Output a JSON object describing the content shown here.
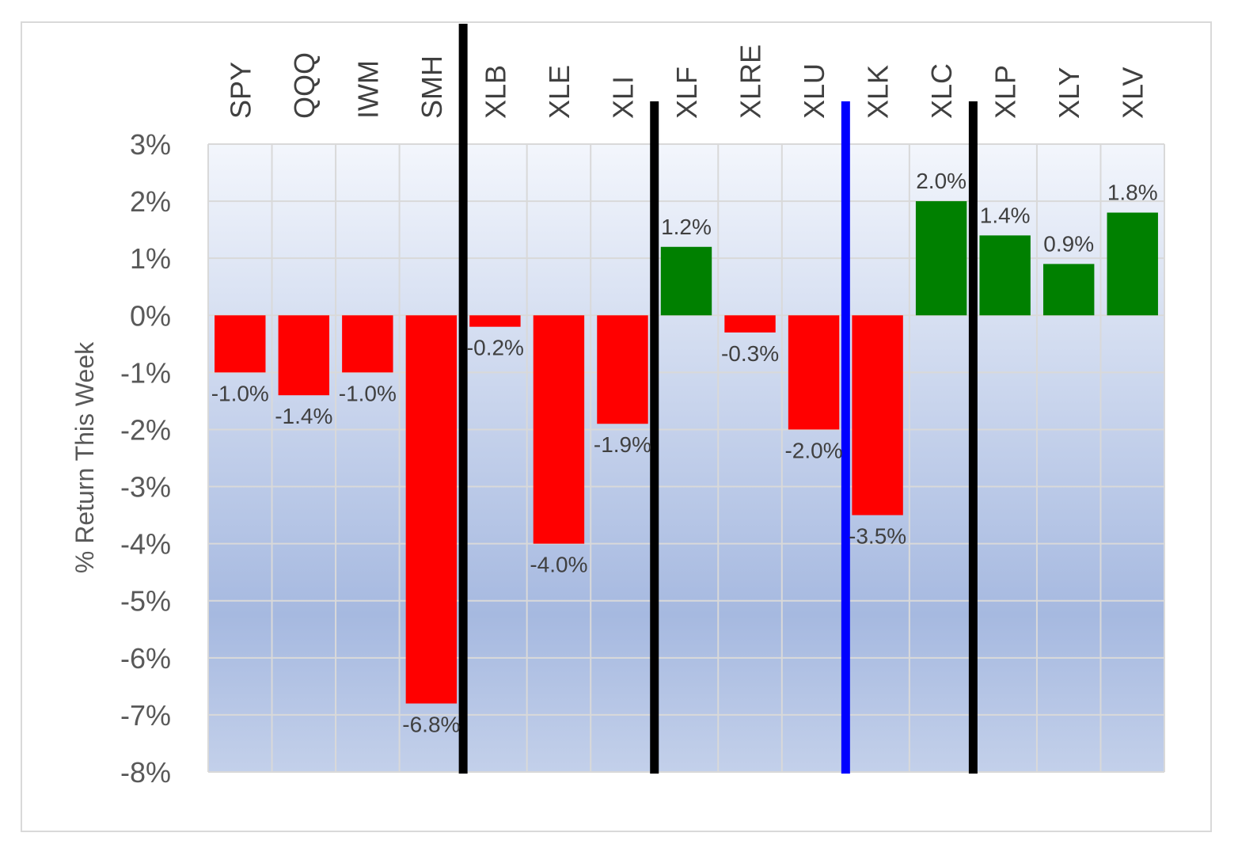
{
  "chart_data": {
    "type": "bar",
    "title": "",
    "xlabel": "",
    "ylabel": "% Return This Week",
    "categories": [
      "SPY",
      "QQQ",
      "IWM",
      "SMH",
      "XLB",
      "XLE",
      "XLI",
      "XLF",
      "XLRE",
      "XLU",
      "XLK",
      "XLC",
      "XLP",
      "XLY",
      "XLV"
    ],
    "values": [
      -1.0,
      -1.4,
      -1.0,
      -6.8,
      -0.2,
      -4.0,
      -1.9,
      1.2,
      -0.3,
      -2.0,
      -3.5,
      2.0,
      1.4,
      0.9,
      1.8
    ],
    "data_labels": [
      "-1.0%",
      "-1.4%",
      "-1.0%",
      "-6.8%",
      "-0.2%",
      "-4.0%",
      "-1.9%",
      "1.2%",
      "-0.3%",
      "-2.0%",
      "-3.5%",
      "2.0%",
      "1.4%",
      "0.9%",
      "1.8%"
    ],
    "ylim": [
      -8,
      3
    ],
    "yticks": [
      3,
      2,
      1,
      0,
      -1,
      -2,
      -3,
      -4,
      -5,
      -6,
      -7,
      -8
    ],
    "ytick_labels": [
      "3%",
      "2%",
      "1%",
      "0%",
      "-1%",
      "-2%",
      "-3%",
      "-4%",
      "-5%",
      "-6%",
      "-7%",
      "-8%"
    ],
    "grid": true,
    "legend": "none",
    "category_labels_position": "top, rotated vertical",
    "colors": {
      "positive": "#008000",
      "negative": "#ff0000",
      "plot_background_top": "#f3f6fc",
      "plot_background_bottom": "#a6b9e0",
      "gridline": "#d9d9d9"
    },
    "separators": [
      {
        "after_category": "SMH",
        "color": "#000000"
      },
      {
        "after_category": "XLI",
        "color": "#000000"
      },
      {
        "after_category": "XLU",
        "color": "#0000ff"
      },
      {
        "after_category": "XLC",
        "color": "#000000"
      }
    ]
  }
}
